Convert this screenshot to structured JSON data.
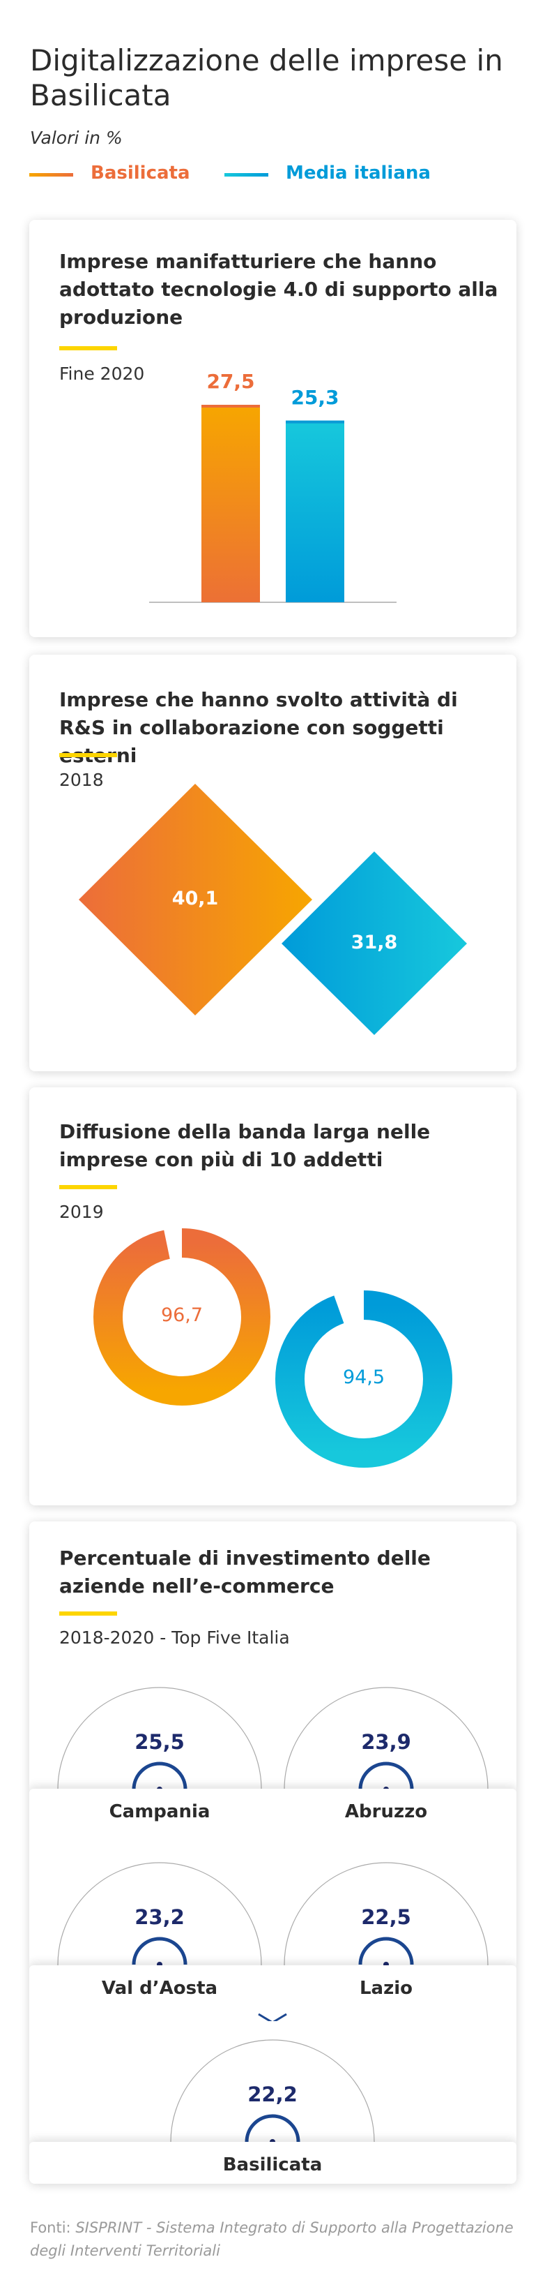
{
  "header": {
    "title": "Digitalizzazione delle imprese in Basilicata",
    "subtitle": "Valori in %"
  },
  "legend": [
    {
      "label": "Basilicata",
      "color": "#ec6d3a"
    },
    {
      "label": "Media italiana",
      "color": "#009bd9"
    }
  ],
  "colors": {
    "orange_light": "#f7a600",
    "orange_dark": "#ec6d3a",
    "blue_light": "#17c8dc",
    "blue_dark": "#009bd9",
    "navy": "#1d2a6b",
    "yellow": "#fdd500"
  },
  "chart_data": [
    {
      "type": "bar",
      "title": "Imprese manifatturiere che hanno adottato tecnologie 4.0 di supporto alla produzione",
      "period": "Fine 2020",
      "categories": [
        "Basilicata",
        "Media italiana"
      ],
      "values": [
        27.5,
        25.3
      ],
      "labels": [
        "27,5",
        "25,3"
      ]
    },
    {
      "type": "diamond",
      "title": "Imprese che  hanno svolto attività di R&S in collaborazione con soggetti esterni",
      "period": "2018",
      "categories": [
        "Basilicata",
        "Media italiana"
      ],
      "values": [
        40.1,
        31.8
      ],
      "labels": [
        "40,1",
        "31,8"
      ]
    },
    {
      "type": "pie",
      "title": "Diffusione della banda larga nelle imprese con più di 10 addetti",
      "period": "2019",
      "categories": [
        "Basilicata",
        "Media italiana"
      ],
      "values": [
        96.7,
        94.5
      ],
      "labels": [
        "96,7",
        "94,5"
      ]
    },
    {
      "type": "table",
      "title": "Percentuale di investimento delle aziende nell’e-commerce",
      "period": "2018-2020 - Top Five Italia",
      "categories": [
        "Campania",
        "Abruzzo",
        "Val d’Aosta",
        "Lazio",
        "Basilicata"
      ],
      "values": [
        25.5,
        23.9,
        23.2,
        22.5,
        22.2
      ],
      "labels": [
        "25,5",
        "23,9",
        "23,2",
        "22,5",
        "22,2"
      ]
    }
  ],
  "footer": {
    "prefix": "Fonti: ",
    "source": "SISPRINT - Sistema Integrato di Supporto alla Progettazione degli Interventi Territoriali"
  }
}
